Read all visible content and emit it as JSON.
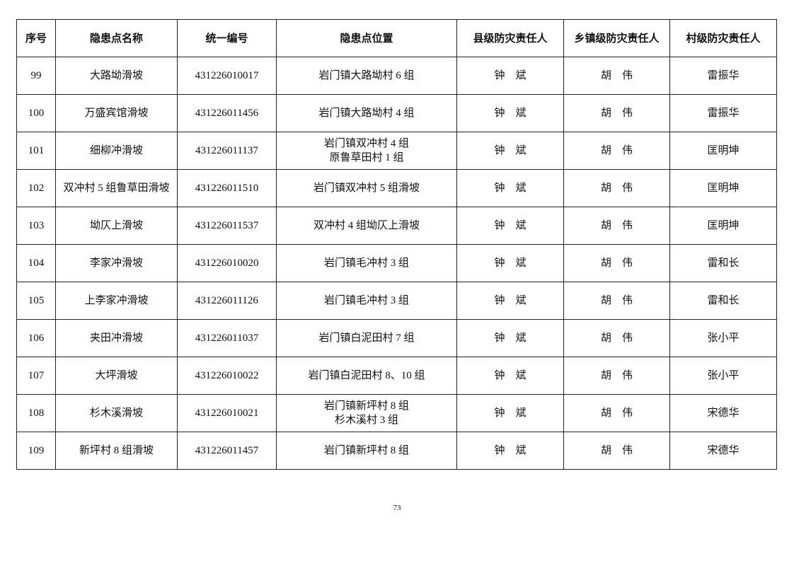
{
  "table": {
    "header": [
      "序号",
      "隐患点名称",
      "统一编号",
      "隐患点位置",
      "县级防灾责任人",
      "乡镇级防灾责任人",
      "村级防灾责任人"
    ],
    "rows": [
      [
        "99",
        "大路坳滑坡",
        "431226010017",
        [
          "岩门镇大路坳村 6 组"
        ],
        "钟　斌",
        "胡　伟",
        "雷振华"
      ],
      [
        "100",
        "万盛宾馆滑坡",
        "431226011456",
        [
          "岩门镇大路坳村 4 组"
        ],
        "钟　斌",
        "胡　伟",
        "雷振华"
      ],
      [
        "101",
        "细柳冲滑坡",
        "431226011137",
        [
          "岩门镇双冲村 4 组",
          "原鲁草田村 1 组"
        ],
        "钟　斌",
        "胡　伟",
        "匡明坤"
      ],
      [
        "102",
        "双冲村 5 组鲁草田滑坡",
        "431226011510",
        [
          "岩门镇双冲村 5 组滑坡"
        ],
        "钟　斌",
        "胡　伟",
        "匡明坤"
      ],
      [
        "103",
        "坳仄上滑坡",
        "431226011537",
        [
          "双冲村 4 组坳仄上滑坡"
        ],
        "钟　斌",
        "胡　伟",
        "匡明坤"
      ],
      [
        "104",
        "李家冲滑坡",
        "431226010020",
        [
          "岩门镇毛冲村 3 组"
        ],
        "钟　斌",
        "胡　伟",
        "雷和长"
      ],
      [
        "105",
        "上李家冲滑坡",
        "431226011126",
        [
          "岩门镇毛冲村 3 组"
        ],
        "钟　斌",
        "胡　伟",
        "雷和长"
      ],
      [
        "106",
        "夹田冲滑坡",
        "431226011037",
        [
          "岩门镇白泥田村 7 组"
        ],
        "钟　斌",
        "胡　伟",
        "张小平"
      ],
      [
        "107",
        "大坪滑坡",
        "431226010022",
        [
          "岩门镇白泥田村 8、10 组"
        ],
        "钟　斌",
        "胡　伟",
        "张小平"
      ],
      [
        "108",
        "杉木溪滑坡",
        "431226010021",
        [
          "岩门镇新坪村 8 组",
          "杉木溪村 3 组"
        ],
        "钟　斌",
        "胡　伟",
        "宋德华"
      ],
      [
        "109",
        "新坪村 8 组滑坡",
        "431226011457",
        [
          "岩门镇新坪村 8 组"
        ],
        "钟　斌",
        "胡　伟",
        "宋德华"
      ]
    ]
  },
  "footer": {
    "page_number": "73"
  }
}
